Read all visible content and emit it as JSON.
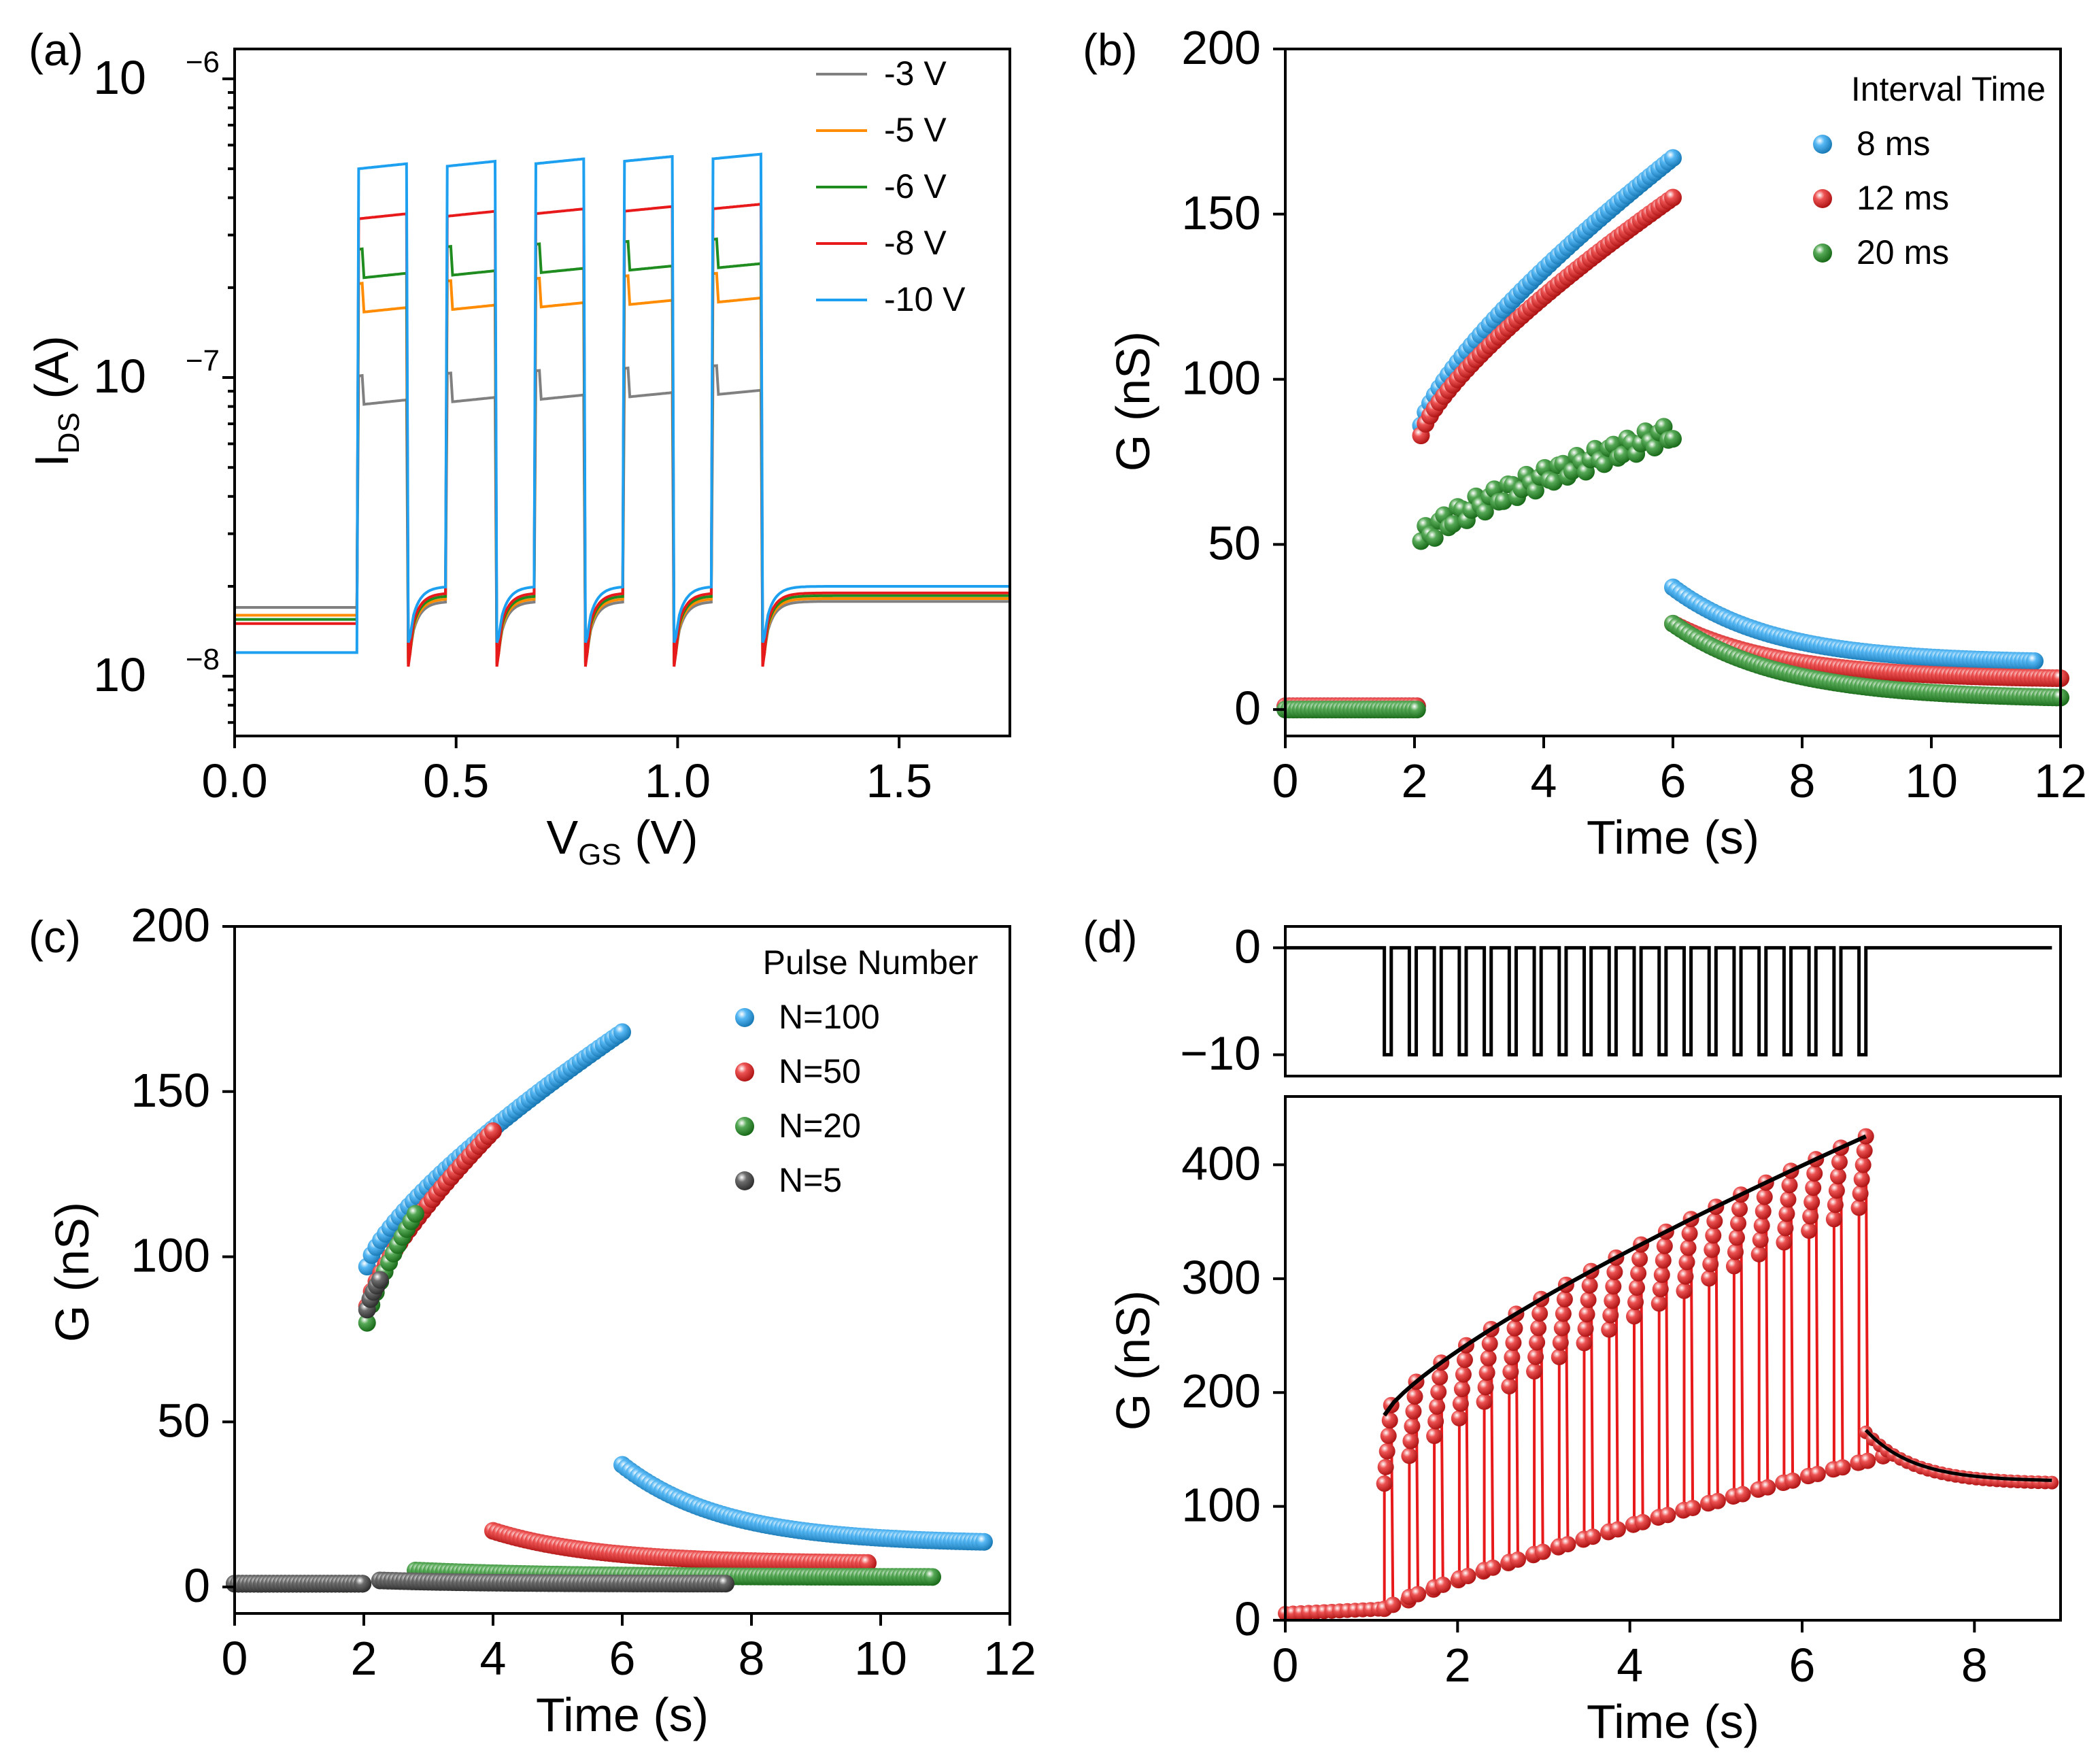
{
  "figure": {
    "panels": [
      "(a)",
      "(b)",
      "(c)",
      "(d)"
    ]
  },
  "chart_data": [
    {
      "id": "a",
      "type": "line",
      "panel_label": "(a)",
      "title": "",
      "xlabel": "V",
      "xlabel_sub": "GS",
      "xlabel_unit": " (V)",
      "ylabel": "I",
      "ylabel_sub": "DS",
      "ylabel_unit": " (A)",
      "xlim": [
        0,
        1.75
      ],
      "ylim_log10": [
        -8.2,
        -5.9
      ],
      "yscale": "log",
      "xticks": [
        0.0,
        0.5,
        1.0,
        1.5
      ],
      "xtick_labels": [
        "0.0",
        "0.5",
        "1.0",
        "1.5"
      ],
      "yticks_log10": [
        -8,
        -7,
        -6
      ],
      "ytick_base": "10",
      "ytick_exps": [
        "−8",
        "−7",
        "−6"
      ],
      "legend_position": "top-right",
      "pulse_windows": [
        [
          0.28,
          0.39
        ],
        [
          0.48,
          0.59
        ],
        [
          0.68,
          0.79
        ],
        [
          0.88,
          0.99
        ],
        [
          1.08,
          1.19
        ]
      ],
      "series": [
        {
          "name": "-3 V",
          "color": "#808080",
          "baseline": 1.7e-08,
          "on_level": 8.1e-08,
          "after": 1.78e-08,
          "dip": 1.15e-08
        },
        {
          "name": "-5 V",
          "color": "#ff8c00",
          "baseline": 1.6e-08,
          "on_level": 1.65e-07,
          "after": 1.82e-08,
          "dip": 1.1e-08
        },
        {
          "name": "-6 V",
          "color": "#1e8c1e",
          "baseline": 1.55e-08,
          "on_level": 2.15e-07,
          "after": 1.86e-08,
          "dip": 1.08e-08
        },
        {
          "name": "-8 V",
          "color": "#e8191a",
          "baseline": 1.5e-08,
          "on_level": 3.4e-07,
          "after": 1.9e-08,
          "dip": 1.05e-08
        },
        {
          "name": "-10 V",
          "color": "#1ea0f0",
          "baseline": 1.2e-08,
          "on_level": 5e-07,
          "after": 2e-08,
          "dip": 1.3e-08
        }
      ]
    },
    {
      "id": "b",
      "type": "scatter",
      "panel_label": "(b)",
      "xlabel": "Time (s)",
      "ylabel": "G (nS)",
      "xlim": [
        0,
        12
      ],
      "ylim": [
        -8,
        200
      ],
      "xticks": [
        0,
        2,
        4,
        6,
        8,
        10,
        12
      ],
      "yticks": [
        0,
        50,
        100,
        150,
        200
      ],
      "legend_title": "Interval Time",
      "legend_position": "top-right",
      "series": [
        {
          "name": "8 ms",
          "color": "#1ea0f0",
          "pre": 1,
          "pulse_start": 2.1,
          "pulse_end": 6.0,
          "g_start": 86,
          "g_end": 167,
          "decay_start": 37,
          "decay_end": 14,
          "decay_until": 11.6
        },
        {
          "name": "12 ms",
          "color": "#e8191a",
          "pre": 1,
          "pulse_start": 2.1,
          "pulse_end": 6.0,
          "g_start": 83,
          "g_end": 155,
          "decay_start": 26,
          "decay_end": 9,
          "decay_until": 12.0
        },
        {
          "name": "20 ms",
          "color": "#1e8c1e",
          "pre": 0,
          "pulse_start": 2.1,
          "pulse_end": 6.0,
          "g_start": 51,
          "g_end": 84,
          "decay_start": 26,
          "decay_end": 3,
          "decay_until": 12.0
        }
      ]
    },
    {
      "id": "c",
      "type": "scatter",
      "panel_label": "(c)",
      "xlabel": "Time (s)",
      "ylabel": "G (nS)",
      "xlim": [
        0,
        12
      ],
      "ylim": [
        -8,
        200
      ],
      "xticks": [
        0,
        2,
        4,
        6,
        8,
        10,
        12
      ],
      "yticks": [
        0,
        50,
        100,
        150,
        200
      ],
      "legend_title": "Pulse Number",
      "legend_position": "top-right",
      "series": [
        {
          "name": "N=100",
          "color": "#1ea0f0",
          "pulse_start": 2.05,
          "pulse_end": 6.0,
          "g_start": 97,
          "g_end": 168,
          "decay_start": 37,
          "decay_end": 13,
          "decay_until": 11.6
        },
        {
          "name": "N=50",
          "color": "#e8191a",
          "pulse_start": 2.05,
          "pulse_end": 4.0,
          "g_start": 85,
          "g_end": 138,
          "decay_start": 17,
          "decay_end": 7,
          "decay_until": 9.8
        },
        {
          "name": "N=20",
          "color": "#1e8c1e",
          "pulse_start": 2.05,
          "pulse_end": 2.8,
          "g_start": 80,
          "g_end": 113,
          "decay_start": 5,
          "decay_end": 3,
          "decay_until": 10.8
        },
        {
          "name": "N=5",
          "color": "#3c3c3c",
          "pulse_start": 2.05,
          "pulse_end": 2.25,
          "g_start": 84,
          "g_end": 93,
          "decay_start": 2,
          "decay_end": 1,
          "decay_until": 7.6
        }
      ]
    },
    {
      "id": "d",
      "type": "line",
      "panel_label": "(d)",
      "xlabel": "Time (s)",
      "ylabel": "G (nS)",
      "xlim": [
        0,
        9
      ],
      "ylim": [
        0,
        460
      ],
      "xticks": [
        0,
        2,
        4,
        6,
        8
      ],
      "yticks": [
        0,
        100,
        200,
        300,
        400
      ],
      "pulse_ylim": [
        -12,
        2
      ],
      "pulse_yticks": [
        0,
        -10
      ],
      "pulse_ytick_labels": [
        "0",
        "−10"
      ],
      "pulse_count": 20,
      "pulse_amplitude": -10,
      "pulse_start": 1.15,
      "pulse_period": 0.29,
      "pulse_width": 0.08,
      "envelope_high": [
        180,
        425
      ],
      "envelope_low": [
        10,
        140
      ],
      "decay_start": 165,
      "decay_end": 120,
      "end_time": 8.9,
      "series": [
        {
          "name": "G",
          "color": "#e8191a"
        },
        {
          "name": "fit",
          "color": "#000000"
        },
        {
          "name": "pulse",
          "color": "#000000"
        }
      ]
    }
  ]
}
